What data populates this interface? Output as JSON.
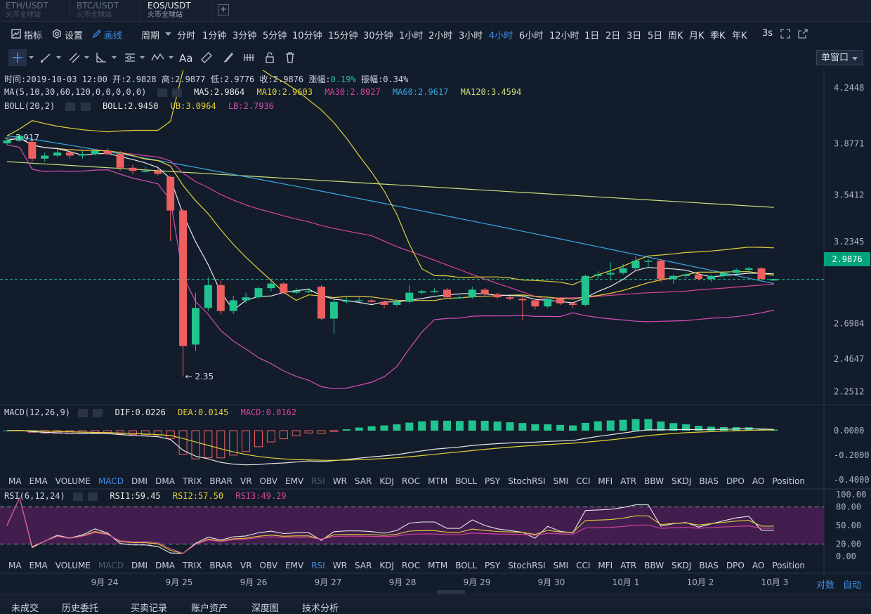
{
  "tabs": [
    {
      "pair": "ETH/USDT",
      "site": "火币全球站",
      "active": false
    },
    {
      "pair": "BTC/USDT",
      "site": "火币全球站",
      "active": false
    },
    {
      "pair": "EOS/USDT",
      "site": "火币全球站",
      "active": true
    }
  ],
  "toolbar": {
    "indicator": "指标",
    "settings": "设置",
    "draw": "画线",
    "period": "周期",
    "periods": [
      "分时",
      "1分钟",
      "3分钟",
      "5分钟",
      "10分钟",
      "15分钟",
      "30分钟",
      "1小时",
      "2小时",
      "3小时",
      "4小时",
      "6小时",
      "12小时",
      "1日",
      "2日",
      "3日",
      "5日",
      "周K",
      "月K",
      "季K",
      "年K"
    ],
    "active_period": "4小时",
    "refresh": "3s",
    "window_mode": "单窗口"
  },
  "drawing_tools": [
    "crosshair-tool",
    "line-tool",
    "parallel-tool",
    "fib-tool",
    "channel-tool",
    "wave-tool",
    "text-tool",
    "ruler-tool",
    "brush-tool",
    "magnet-tool",
    "lock-tool",
    "delete-tool"
  ],
  "drawing_text_label": "Aa",
  "info": {
    "time_label": "时间:",
    "time": "2019-10-03 12:00",
    "open_label": "开:",
    "open": "2.9828",
    "high_label": "高:",
    "high": "2.9877",
    "low_label": "低:",
    "low": "2.9776",
    "close_label": "收:",
    "close": "2.9876",
    "change_label": "涨幅:",
    "change": "0.19%",
    "amp_label": "振幅:",
    "amp": "0.34%"
  },
  "ma": {
    "name": "MA(5,10,30,60,120,0,0,0,0,0)",
    "ma5": "MA5:2.9864",
    "ma10": "MA10:2.9603",
    "ma30": "MA30:2.8927",
    "ma60": "MA60:2.9617",
    "ma120": "MA120:3.4594"
  },
  "boll": {
    "name": "BOLL(20,2)",
    "boll": "BOLL:2.9450",
    "ub": "UB:3.0964",
    "lb": "LB:2.7936"
  },
  "macd": {
    "name": "MACD(12,26,9)",
    "dif": "DIF:0.0226",
    "dea": "DEA:0.0145",
    "macd": "MACD:0.0162"
  },
  "rsi": {
    "name": "RSI(6,12,24)",
    "rsi1": "RSI1:59.45",
    "rsi2": "RSI2:57.50",
    "rsi3": "RSI3:49.29"
  },
  "price_axis": [
    "4.2448",
    "3.8771",
    "3.5412",
    "3.2345",
    "2.9876",
    "2.6984",
    "2.4647",
    "2.2512"
  ],
  "current_price": "2.9876",
  "low_marker": "2.35",
  "start_marker": "3.917",
  "macd_axis": [
    "0.0000",
    "-0.2000",
    "-0.4000"
  ],
  "rsi_axis": [
    "100.00",
    "80.00",
    "50.00",
    "20.00",
    "0.00"
  ],
  "indicators": [
    "MA",
    "EMA",
    "VOLUME",
    "MACD",
    "DMI",
    "DMA",
    "TRIX",
    "BRAR",
    "VR",
    "OBV",
    "EMV",
    "RSI",
    "WR",
    "SAR",
    "KDJ",
    "ROC",
    "MTM",
    "BOLL",
    "PSY",
    "StochRSI",
    "SMI",
    "CCI",
    "MFI",
    "ATR",
    "BBW",
    "SKDJ",
    "BIAS",
    "DPO",
    "AO",
    "Position"
  ],
  "date_axis": [
    "9月 24",
    "9月 25",
    "9月 26",
    "9月 27",
    "9月 28",
    "9月 29",
    "9月 30",
    "10月 1",
    "10月 2",
    "10月 3"
  ],
  "scale_log": "对数",
  "scale_auto": "自动",
  "bottom_tabs": [
    "未成交",
    "历史委托",
    "买卖记录",
    "账户资产",
    "深度图",
    "技术分析"
  ],
  "colors": {
    "up": "#21c38e",
    "down": "#ee5f5f",
    "ma5": "#e8e8e8",
    "ma10": "#e4d03a",
    "ma30": "#d9449c",
    "ma60": "#38a9e0",
    "ma120": "#c5e07a",
    "boll_band": "#e0d23a",
    "boll_lower": "#d64fb5",
    "bg": "#131c2b"
  },
  "chart_data": {
    "type": "candlestick",
    "title": "EOS/USDT 4小时",
    "ylim": [
      2.17,
      4.36
    ],
    "candles": [
      [
        3.88,
        3.9,
        3.87,
        3.92
      ],
      [
        3.9,
        3.93,
        3.89,
        3.94
      ],
      [
        3.89,
        3.78,
        3.76,
        3.91
      ],
      [
        3.78,
        3.8,
        3.76,
        3.82
      ],
      [
        3.8,
        3.82,
        3.79,
        3.84
      ],
      [
        3.82,
        3.8,
        3.78,
        3.83
      ],
      [
        3.8,
        3.81,
        3.78,
        3.83
      ],
      [
        3.81,
        3.83,
        3.8,
        3.84
      ],
      [
        3.83,
        3.81,
        3.8,
        3.85
      ],
      [
        3.81,
        3.72,
        3.7,
        3.83
      ],
      [
        3.72,
        3.7,
        3.68,
        3.74
      ],
      [
        3.7,
        3.7,
        3.69,
        3.73
      ],
      [
        3.7,
        3.68,
        3.67,
        3.72
      ],
      [
        3.66,
        3.44,
        3.24,
        3.67
      ],
      [
        3.44,
        2.55,
        2.35,
        3.45
      ],
      [
        2.56,
        2.8,
        2.52,
        2.9
      ],
      [
        2.8,
        2.95,
        2.78,
        3.0
      ],
      [
        2.95,
        2.78,
        2.76,
        2.98
      ],
      [
        2.78,
        2.85,
        2.76,
        2.88
      ],
      [
        2.85,
        2.87,
        2.83,
        2.9
      ],
      [
        2.87,
        2.93,
        2.86,
        2.94
      ],
      [
        2.93,
        2.96,
        2.91,
        2.98
      ],
      [
        2.96,
        2.9,
        2.89,
        2.97
      ],
      [
        2.9,
        2.91,
        2.89,
        2.93
      ],
      [
        2.91,
        2.91,
        2.9,
        2.93
      ],
      [
        2.94,
        2.73,
        2.72,
        2.95
      ],
      [
        2.73,
        2.84,
        2.63,
        2.86
      ],
      [
        2.84,
        2.85,
        2.83,
        2.87
      ],
      [
        2.85,
        2.85,
        2.84,
        2.87
      ],
      [
        2.85,
        2.84,
        2.83,
        2.86
      ],
      [
        2.84,
        2.82,
        2.8,
        2.85
      ],
      [
        2.82,
        2.84,
        2.81,
        2.86
      ],
      [
        2.84,
        2.9,
        2.83,
        2.95
      ],
      [
        2.9,
        2.91,
        2.89,
        2.92
      ],
      [
        2.91,
        2.91,
        2.9,
        2.93
      ],
      [
        2.92,
        2.87,
        2.86,
        2.93
      ],
      [
        2.87,
        2.87,
        2.86,
        2.88
      ],
      [
        2.87,
        2.92,
        2.86,
        2.94
      ],
      [
        2.92,
        2.89,
        2.88,
        2.93
      ],
      [
        2.89,
        2.87,
        2.86,
        2.9
      ],
      [
        2.87,
        2.86,
        2.85,
        2.88
      ],
      [
        2.86,
        2.85,
        2.72,
        2.87
      ],
      [
        2.85,
        2.81,
        2.79,
        2.86
      ],
      [
        2.81,
        2.86,
        2.8,
        2.87
      ],
      [
        2.86,
        2.83,
        2.82,
        2.87
      ],
      [
        2.83,
        2.82,
        2.8,
        2.84
      ],
      [
        2.82,
        3.01,
        2.81,
        3.02
      ],
      [
        3.01,
        3.02,
        2.99,
        3.04
      ],
      [
        3.02,
        3.03,
        2.98,
        3.1
      ],
      [
        3.03,
        3.06,
        3.02,
        3.09
      ],
      [
        3.06,
        3.11,
        3.05,
        3.14
      ],
      [
        3.11,
        3.11,
        3.07,
        3.12
      ],
      [
        3.11,
        2.99,
        2.97,
        3.12
      ],
      [
        2.99,
        3.01,
        2.96,
        3.02
      ],
      [
        3.01,
        3.02,
        2.99,
        3.03
      ],
      [
        3.02,
        2.99,
        2.98,
        3.03
      ],
      [
        2.99,
        3.01,
        2.97,
        3.02
      ],
      [
        3.01,
        3.03,
        3.0,
        3.04
      ],
      [
        3.03,
        3.05,
        3.02,
        3.06
      ],
      [
        3.05,
        3.06,
        3.03,
        3.07
      ],
      [
        3.06,
        2.99,
        2.98,
        3.07
      ],
      [
        2.98,
        2.99,
        2.98,
        2.99
      ]
    ]
  }
}
